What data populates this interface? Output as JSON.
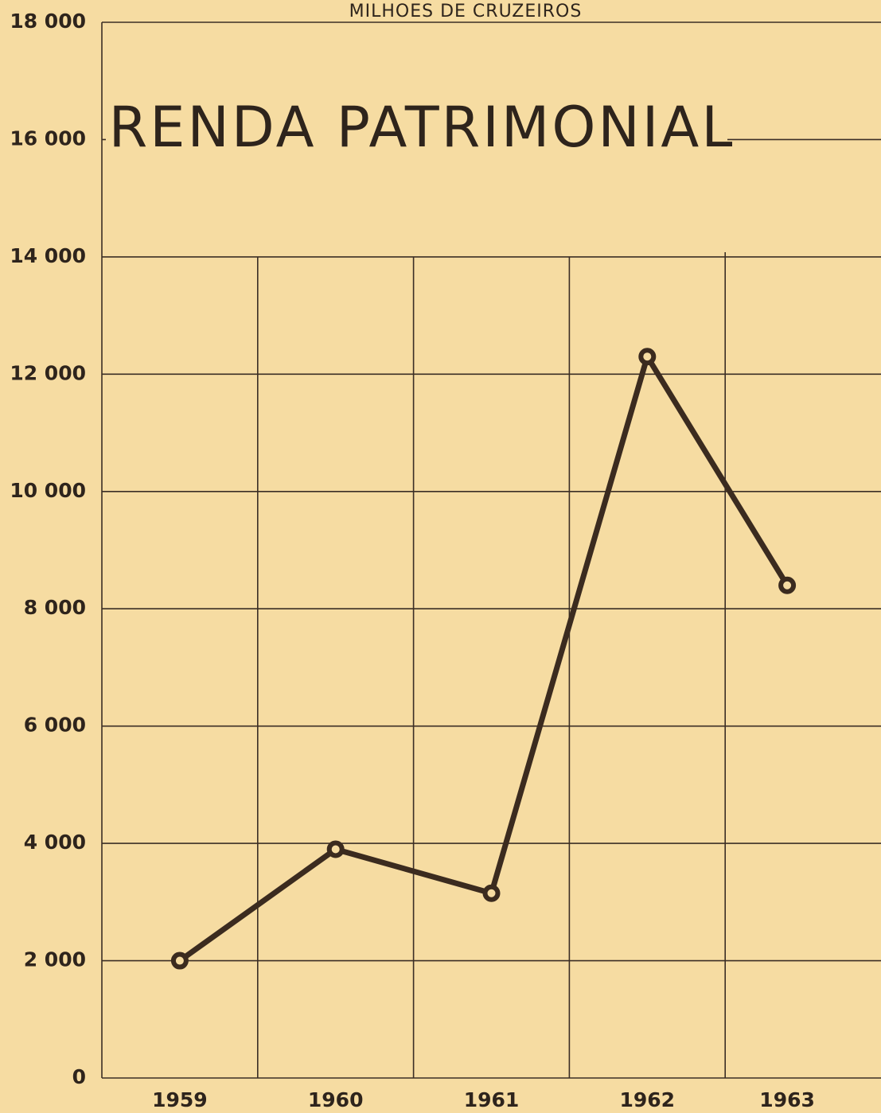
{
  "chart_data": {
    "type": "line",
    "title": "RENDA PATRIMONIAL",
    "subtitle": "MILHOES DE CRUZEIROS",
    "categories": [
      "1959",
      "1960",
      "1961",
      "1962",
      "1963"
    ],
    "values": [
      2000,
      3900,
      3150,
      12300,
      8400
    ],
    "color": "#3b2b1f",
    "ylim": [
      0,
      18000
    ],
    "yticks": [
      0,
      {
        "value": 2000,
        "label": "2 000"
      },
      {
        "value": 4000,
        "label": "4 000"
      },
      {
        "value": 6000,
        "label": "6 000"
      },
      {
        "value": 8000,
        "label": "8 000"
      },
      {
        "value": 10000,
        "label": "10 000"
      },
      {
        "value": 12000,
        "label": "12 000"
      },
      {
        "value": 14000,
        "label": "14 000"
      },
      {
        "value": 16000,
        "label": "16 000"
      },
      {
        "value": 18000,
        "label": "18 000"
      }
    ],
    "grid": true
  }
}
